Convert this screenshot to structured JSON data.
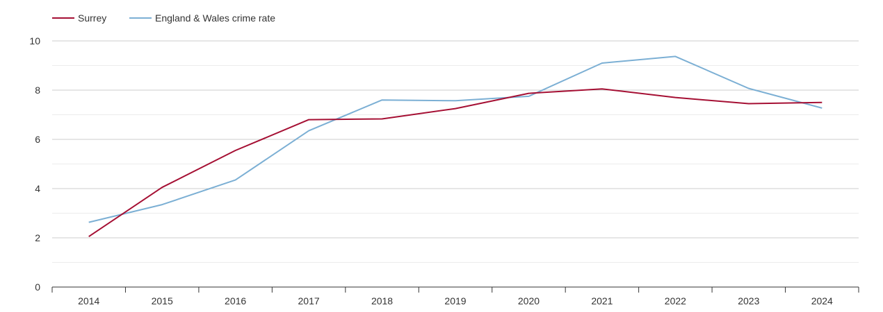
{
  "chart_data": {
    "type": "line",
    "title": "",
    "xlabel": "",
    "ylabel": "",
    "legend_position": "top-left",
    "grid": true,
    "ylim": [
      0,
      10
    ],
    "y_ticks": [
      "0",
      "2",
      "4",
      "6",
      "8",
      "10"
    ],
    "x": [
      "2014",
      "2015",
      "2016",
      "2017",
      "2018",
      "2019",
      "2020",
      "2021",
      "2022",
      "2023",
      "2024"
    ],
    "series": [
      {
        "name": "Surrey",
        "color": "#a50f33",
        "values": [
          2.05,
          4.05,
          5.55,
          6.8,
          6.83,
          7.25,
          7.87,
          8.05,
          7.7,
          7.45,
          7.5
        ]
      },
      {
        "name": "England & Wales crime rate",
        "color": "#7bafd4",
        "values": [
          2.63,
          3.35,
          4.35,
          6.35,
          7.6,
          7.57,
          7.75,
          9.1,
          9.37,
          8.07,
          7.27
        ]
      }
    ]
  }
}
